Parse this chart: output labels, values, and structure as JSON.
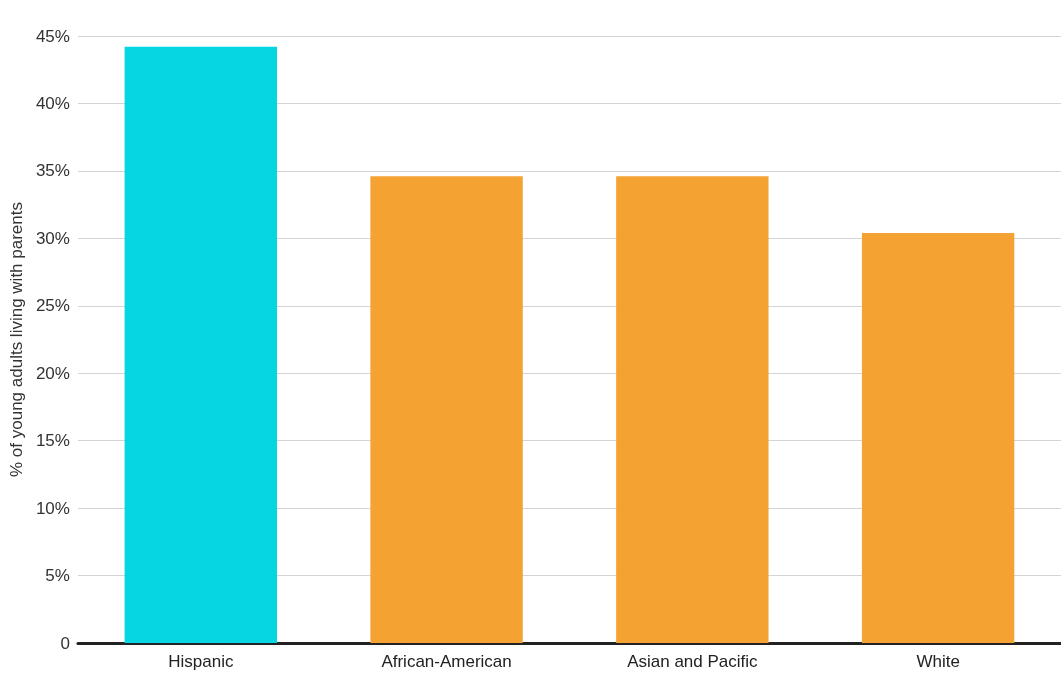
{
  "chart_data": {
    "type": "bar",
    "ylabel": "% of young adults living with parents",
    "categories": [
      "Hispanic",
      "African-American",
      "Asian and Pacific",
      "White"
    ],
    "values": [
      44.2,
      34.6,
      34.6,
      30.4
    ],
    "colors": [
      "#06d6e2",
      "#f4a232",
      "#f4a232",
      "#f4a232"
    ],
    "ylim": [
      0,
      45
    ],
    "yticks": [
      0,
      {
        "value": 5,
        "label": "5%"
      },
      {
        "value": 10,
        "label": "10%"
      },
      {
        "value": 15,
        "label": "15%"
      },
      {
        "value": 20,
        "label": "20%"
      },
      {
        "value": 25,
        "label": "25%"
      },
      {
        "value": 30,
        "label": "30%"
      },
      {
        "value": 35,
        "label": "35%"
      },
      {
        "value": 40,
        "label": "40%"
      },
      {
        "value": 45,
        "label": "45%"
      }
    ],
    "grid": "y"
  }
}
